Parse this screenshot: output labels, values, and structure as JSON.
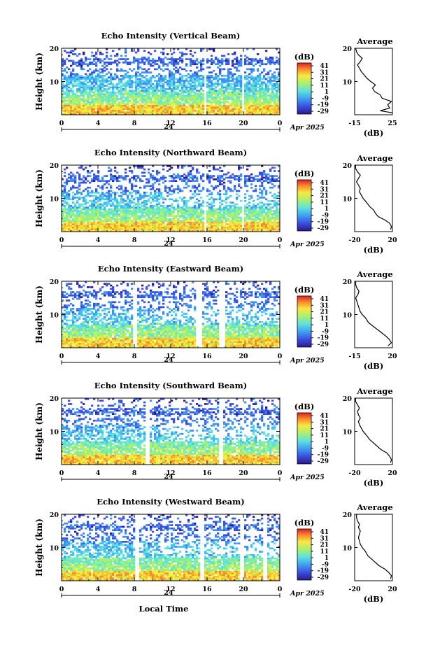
{
  "chart_data": [
    {
      "type": "heatmap",
      "title": "Echo Intensity (Vertical Beam)",
      "ylabel": "Height (km)",
      "x_ticks": [
        "0",
        "4",
        "8",
        "12",
        "16",
        "20",
        "0"
      ],
      "y_ticks": [
        "20",
        "10"
      ],
      "date_label": "24",
      "month_label": "Apr 2025",
      "colorbar": {
        "unit": "(dB)",
        "ticks": [
          "41",
          "31",
          "21",
          "11",
          "1",
          "-9",
          "-19",
          "-29"
        ]
      },
      "profile": {
        "title": "Average",
        "xlabel": "(dB)",
        "x_ticks": [
          "-15",
          "25"
        ],
        "y_ticks": [
          "20",
          "10"
        ],
        "xlim": [
          -15,
          25
        ],
        "points": [
          [
            25,
            0.6
          ],
          [
            12,
            1.2
          ],
          [
            22,
            2
          ],
          [
            20,
            3
          ],
          [
            24,
            4
          ],
          [
            14,
            5
          ],
          [
            12,
            6
          ],
          [
            6,
            7
          ],
          [
            4,
            8
          ],
          [
            7,
            9
          ],
          [
            2,
            10
          ],
          [
            -2,
            11
          ],
          [
            -5,
            12
          ],
          [
            -8,
            13
          ],
          [
            -10,
            14
          ],
          [
            -12,
            15
          ],
          [
            -9,
            16
          ],
          [
            -7,
            17
          ],
          [
            -11,
            18
          ],
          [
            -13,
            19
          ],
          [
            -14,
            20
          ]
        ]
      }
    },
    {
      "type": "heatmap",
      "title": "Echo Intensity (Northward Beam)",
      "ylabel": "Height (km)",
      "x_ticks": [
        "0",
        "4",
        "8",
        "12",
        "16",
        "20",
        "0"
      ],
      "y_ticks": [
        "20",
        "10"
      ],
      "date_label": "24",
      "month_label": "Apr 2025",
      "colorbar": {
        "unit": "(dB)",
        "ticks": [
          "41",
          "31",
          "21",
          "11",
          "1",
          "-9",
          "-19",
          "-29"
        ]
      },
      "profile": {
        "title": "Average",
        "xlabel": "(dB)",
        "x_ticks": [
          "-20",
          "20"
        ],
        "y_ticks": [
          "20",
          "10"
        ],
        "xlim": [
          -20,
          20
        ],
        "points": [
          [
            18,
            0.6
          ],
          [
            19,
            1.5
          ],
          [
            17,
            2.5
          ],
          [
            12,
            3.5
          ],
          [
            5,
            4.5
          ],
          [
            2,
            5.5
          ],
          [
            0,
            6.5
          ],
          [
            -4,
            7.5
          ],
          [
            -8,
            9
          ],
          [
            -11,
            10
          ],
          [
            -13,
            11
          ],
          [
            -15,
            12
          ],
          [
            -14,
            13
          ],
          [
            -16,
            14
          ],
          [
            -18,
            15
          ],
          [
            -16,
            16
          ],
          [
            -14,
            17
          ],
          [
            -17,
            18
          ],
          [
            -19,
            19
          ],
          [
            -19,
            20
          ]
        ]
      }
    },
    {
      "type": "heatmap",
      "title": "Echo Intensity (Eastward Beam)",
      "ylabel": "Height (km)",
      "x_ticks": [
        "0",
        "4",
        "8",
        "12",
        "16",
        "20",
        "0"
      ],
      "y_ticks": [
        "20",
        "10"
      ],
      "date_label": "24",
      "month_label": "Apr 2025",
      "colorbar": {
        "unit": "(dB)",
        "ticks": [
          "41",
          "31",
          "21",
          "11",
          "1",
          "-9",
          "-19",
          "-29"
        ]
      },
      "profile": {
        "title": "Average",
        "xlabel": "(dB)",
        "x_ticks": [
          "-15",
          "20"
        ],
        "y_ticks": [
          "20",
          "10"
        ],
        "xlim": [
          -15,
          20
        ],
        "points": [
          [
            16,
            0.6
          ],
          [
            19,
            1.5
          ],
          [
            17,
            2.5
          ],
          [
            14,
            3.5
          ],
          [
            10,
            4.5
          ],
          [
            6,
            5.5
          ],
          [
            2,
            6.5
          ],
          [
            -2,
            7.5
          ],
          [
            -5,
            9
          ],
          [
            -8,
            10
          ],
          [
            -10,
            11
          ],
          [
            -11,
            12
          ],
          [
            -12,
            13
          ],
          [
            -13,
            14
          ],
          [
            -14,
            15
          ],
          [
            -12,
            16
          ],
          [
            -11,
            17
          ],
          [
            -13,
            18
          ],
          [
            -14,
            19
          ],
          [
            -14,
            20
          ]
        ]
      }
    },
    {
      "type": "heatmap",
      "title": "Echo Intensity (Southward Beam)",
      "ylabel": "Height (km)",
      "x_ticks": [
        "0",
        "4",
        "8",
        "12",
        "16",
        "20",
        "0"
      ],
      "y_ticks": [
        "20",
        "10"
      ],
      "date_label": "24",
      "month_label": "Apr 2025",
      "colorbar": {
        "unit": "(dB)",
        "ticks": [
          "41",
          "31",
          "21",
          "11",
          "1",
          "-9",
          "-19",
          "-29"
        ]
      },
      "profile": {
        "title": "Average",
        "xlabel": "(dB)",
        "x_ticks": [
          "-20",
          "20"
        ],
        "y_ticks": [
          "20",
          "10"
        ],
        "xlim": [
          -20,
          20
        ],
        "points": [
          [
            18,
            0.6
          ],
          [
            19,
            1.5
          ],
          [
            17,
            2.5
          ],
          [
            14,
            3.5
          ],
          [
            8,
            4.5
          ],
          [
            4,
            5.5
          ],
          [
            0,
            6.5
          ],
          [
            -4,
            7.5
          ],
          [
            -8,
            9
          ],
          [
            -11,
            10
          ],
          [
            -13,
            11
          ],
          [
            -15,
            12
          ],
          [
            -16,
            13
          ],
          [
            -14,
            14
          ],
          [
            -16,
            15
          ],
          [
            -17,
            16
          ],
          [
            -15,
            17
          ],
          [
            -17,
            18
          ],
          [
            -19,
            19
          ],
          [
            -19,
            20
          ]
        ]
      }
    },
    {
      "type": "heatmap",
      "title": "Echo Intensity (Westward Beam)",
      "ylabel": "Height (km)",
      "x_ticks": [
        "0",
        "4",
        "8",
        "12",
        "16",
        "20",
        "0"
      ],
      "y_ticks": [
        "20",
        "10"
      ],
      "date_label": "24",
      "month_label": "Apr 2025",
      "xlabel": "Local Time",
      "colorbar": {
        "unit": "(dB)",
        "ticks": [
          "41",
          "31",
          "21",
          "11",
          "1",
          "-9",
          "-19",
          "-29"
        ]
      },
      "profile": {
        "title": "Average",
        "xlabel": "(dB)",
        "x_ticks": [
          "-20",
          "20"
        ],
        "y_ticks": [
          "20",
          "10"
        ],
        "xlim": [
          -20,
          20
        ],
        "points": [
          [
            18,
            0.6
          ],
          [
            19,
            1.5
          ],
          [
            16,
            2.5
          ],
          [
            12,
            3.5
          ],
          [
            6,
            4.5
          ],
          [
            2,
            5.5
          ],
          [
            -2,
            6.5
          ],
          [
            -6,
            7.5
          ],
          [
            -9,
            9
          ],
          [
            -12,
            10
          ],
          [
            -14,
            11
          ],
          [
            -15,
            12
          ],
          [
            -16,
            13
          ],
          [
            -15,
            14
          ],
          [
            -14,
            15
          ],
          [
            -16,
            16
          ],
          [
            -15,
            17
          ],
          [
            -17,
            18
          ],
          [
            -18,
            19
          ],
          [
            -18,
            20
          ]
        ]
      }
    }
  ]
}
